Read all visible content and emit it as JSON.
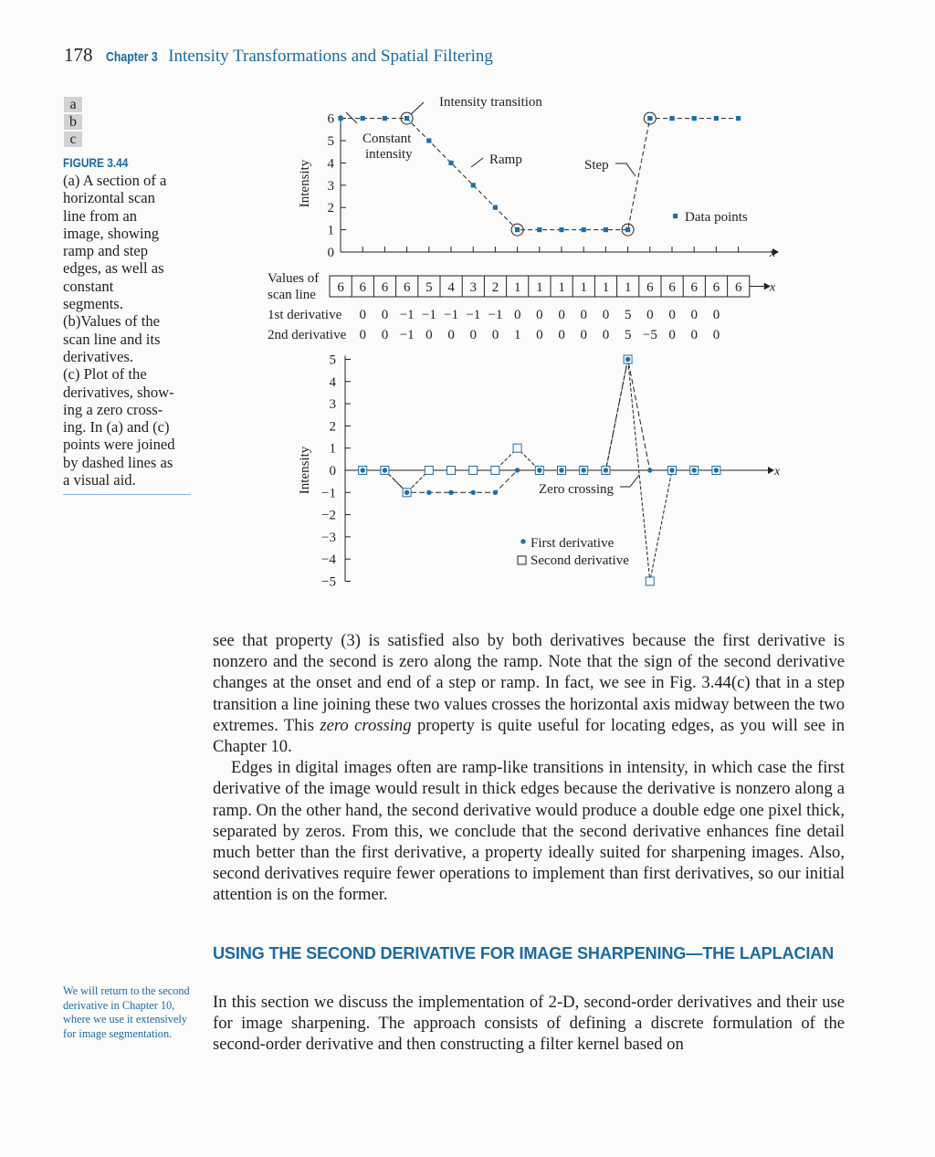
{
  "header": {
    "page_number": "178",
    "chapter_label": "Chapter 3",
    "chapter_title": "Intensity Transformations and Spatial Filtering"
  },
  "figure": {
    "panel_letters": [
      "a",
      "b",
      "c"
    ],
    "label": "FIGURE 3.44",
    "caption": "(a) A section of a horizontal scan line from an image, showing ramp and step edges, as well as constant segments. (b)Values of the scan line and its derivatives. (c) Plot of the derivatives, showing a zero crossing. In (a) and (c) points were joined by dashed lines as a visual aid.",
    "caption_lines": [
      "(a) A section of a",
      "horizontal scan",
      "line from an",
      "image, showing",
      "ramp and step",
      "edges, as well as",
      "constant",
      "segments.",
      "(b)Values of the",
      "scan line and its",
      "derivatives.",
      "(c) Plot of the",
      "derivatives, show-",
      "ing a zero cross-",
      "ing. In (a) and (c)",
      "points were joined",
      "by dashed lines as",
      "a visual aid."
    ]
  },
  "chart_data": [
    {
      "type": "line",
      "panel": "a",
      "ylabel": "Intensity",
      "xlabel": "x",
      "ylim": [
        0,
        6
      ],
      "yticks": [
        "0",
        "1",
        "2",
        "3",
        "4",
        "5",
        "6"
      ],
      "x": [
        0,
        1,
        2,
        3,
        4,
        5,
        6,
        7,
        8,
        9,
        10,
        11,
        12,
        13,
        14,
        15,
        16,
        17,
        18
      ],
      "series": [
        {
          "name": "Data points",
          "values": [
            6,
            6,
            6,
            6,
            5,
            4,
            3,
            2,
            1,
            1,
            1,
            1,
            1,
            1,
            6,
            6,
            6,
            6,
            6
          ]
        }
      ],
      "annotations": [
        "Intensity transition",
        "Constant intensity",
        "Ramp",
        "Step"
      ],
      "annotation_lines": {
        "constant": [
          "Constant",
          "intensity"
        ]
      },
      "legend": "Data points"
    },
    {
      "type": "table",
      "panel": "b",
      "axis_label": "x",
      "rows": [
        {
          "label": "Values of scan line",
          "label_lines": [
            "Values of",
            "scan line"
          ],
          "values": [
            "6",
            "6",
            "6",
            "6",
            "5",
            "4",
            "3",
            "2",
            "1",
            "1",
            "1",
            "1",
            "1",
            "1",
            "6",
            "6",
            "6",
            "6",
            "6"
          ]
        },
        {
          "label": "1st derivative",
          "values": [
            "0",
            "0",
            "−1",
            "−1",
            "−1",
            "−1",
            "−1",
            "0",
            "0",
            "0",
            "0",
            "0",
            "5",
            "0",
            "0",
            "0",
            "0"
          ]
        },
        {
          "label": "2nd derivative",
          "values": [
            "0",
            "0",
            "−1",
            "0",
            "0",
            "0",
            "0",
            "1",
            "0",
            "0",
            "0",
            "0",
            "5",
            "−5",
            "0",
            "0",
            "0"
          ]
        }
      ]
    },
    {
      "type": "line",
      "panel": "c",
      "ylabel": "Intensity",
      "xlabel": "x",
      "ylim": [
        -5,
        5
      ],
      "yticks": [
        "5",
        "4",
        "3",
        "2",
        "1",
        "0",
        "−1",
        "−2",
        "−3",
        "−4",
        "−5"
      ],
      "x": [
        1,
        2,
        3,
        4,
        5,
        6,
        7,
        8,
        9,
        10,
        11,
        12,
        13,
        14,
        15,
        16,
        17
      ],
      "series": [
        {
          "name": "First derivative",
          "values": [
            0,
            0,
            -1,
            -1,
            -1,
            -1,
            -1,
            0,
            0,
            0,
            0,
            0,
            5,
            0,
            0,
            0,
            0
          ]
        },
        {
          "name": "Second derivative",
          "values": [
            0,
            0,
            -1,
            0,
            0,
            0,
            0,
            1,
            0,
            0,
            0,
            0,
            5,
            -5,
            0,
            0,
            0
          ]
        }
      ],
      "annotations": [
        "Zero crossing"
      ],
      "legend": [
        "First derivative",
        "Second derivative"
      ]
    }
  ],
  "body": {
    "p1_a": "see that property (3) is satisfied also by both derivatives because the first derivative is nonzero and the second is zero along the ramp. Note that the sign of the second derivative changes at the onset and end of a step or ramp. In fact, we see in Fig. 3.44(c) that in a step transition a line joining these two values crosses the horizontal axis midway between the two extremes. This ",
    "p1_em": "zero crossing",
    "p1_b": " property is quite useful for locating edges, as you will see in Chapter 10.",
    "p2": "Edges in digital images often are ramp-like transitions in intensity, in which case the first derivative of the image would result in thick edges because the derivative is nonzero along a ramp. On the other hand, the second derivative would produce a double edge one pixel thick, separated by zeros. From this, we conclude that the second derivative enhances fine detail much better than the first derivative, a property ideally suited for sharpening images. Also, second derivatives require fewer operations to implement than first derivatives, so our initial attention is on the former."
  },
  "section": {
    "heading": "USING THE SECOND DERIVATIVE FOR IMAGE SHARPENING—THE LAPLACIAN",
    "paragraph": "In this section we discuss the implementation of 2-D, second-order derivatives and their use for image sharpening. The approach consists of defining a discrete formulation of the second-order derivative and then constructing a filter kernel based on"
  },
  "margin_note": "We will return to the second derivative in Chapter 10, where we use it extensively for image segmentation.",
  "colors": {
    "accent": "#1b6aa0",
    "marker": "#1f6fa6",
    "text": "#231f20"
  }
}
